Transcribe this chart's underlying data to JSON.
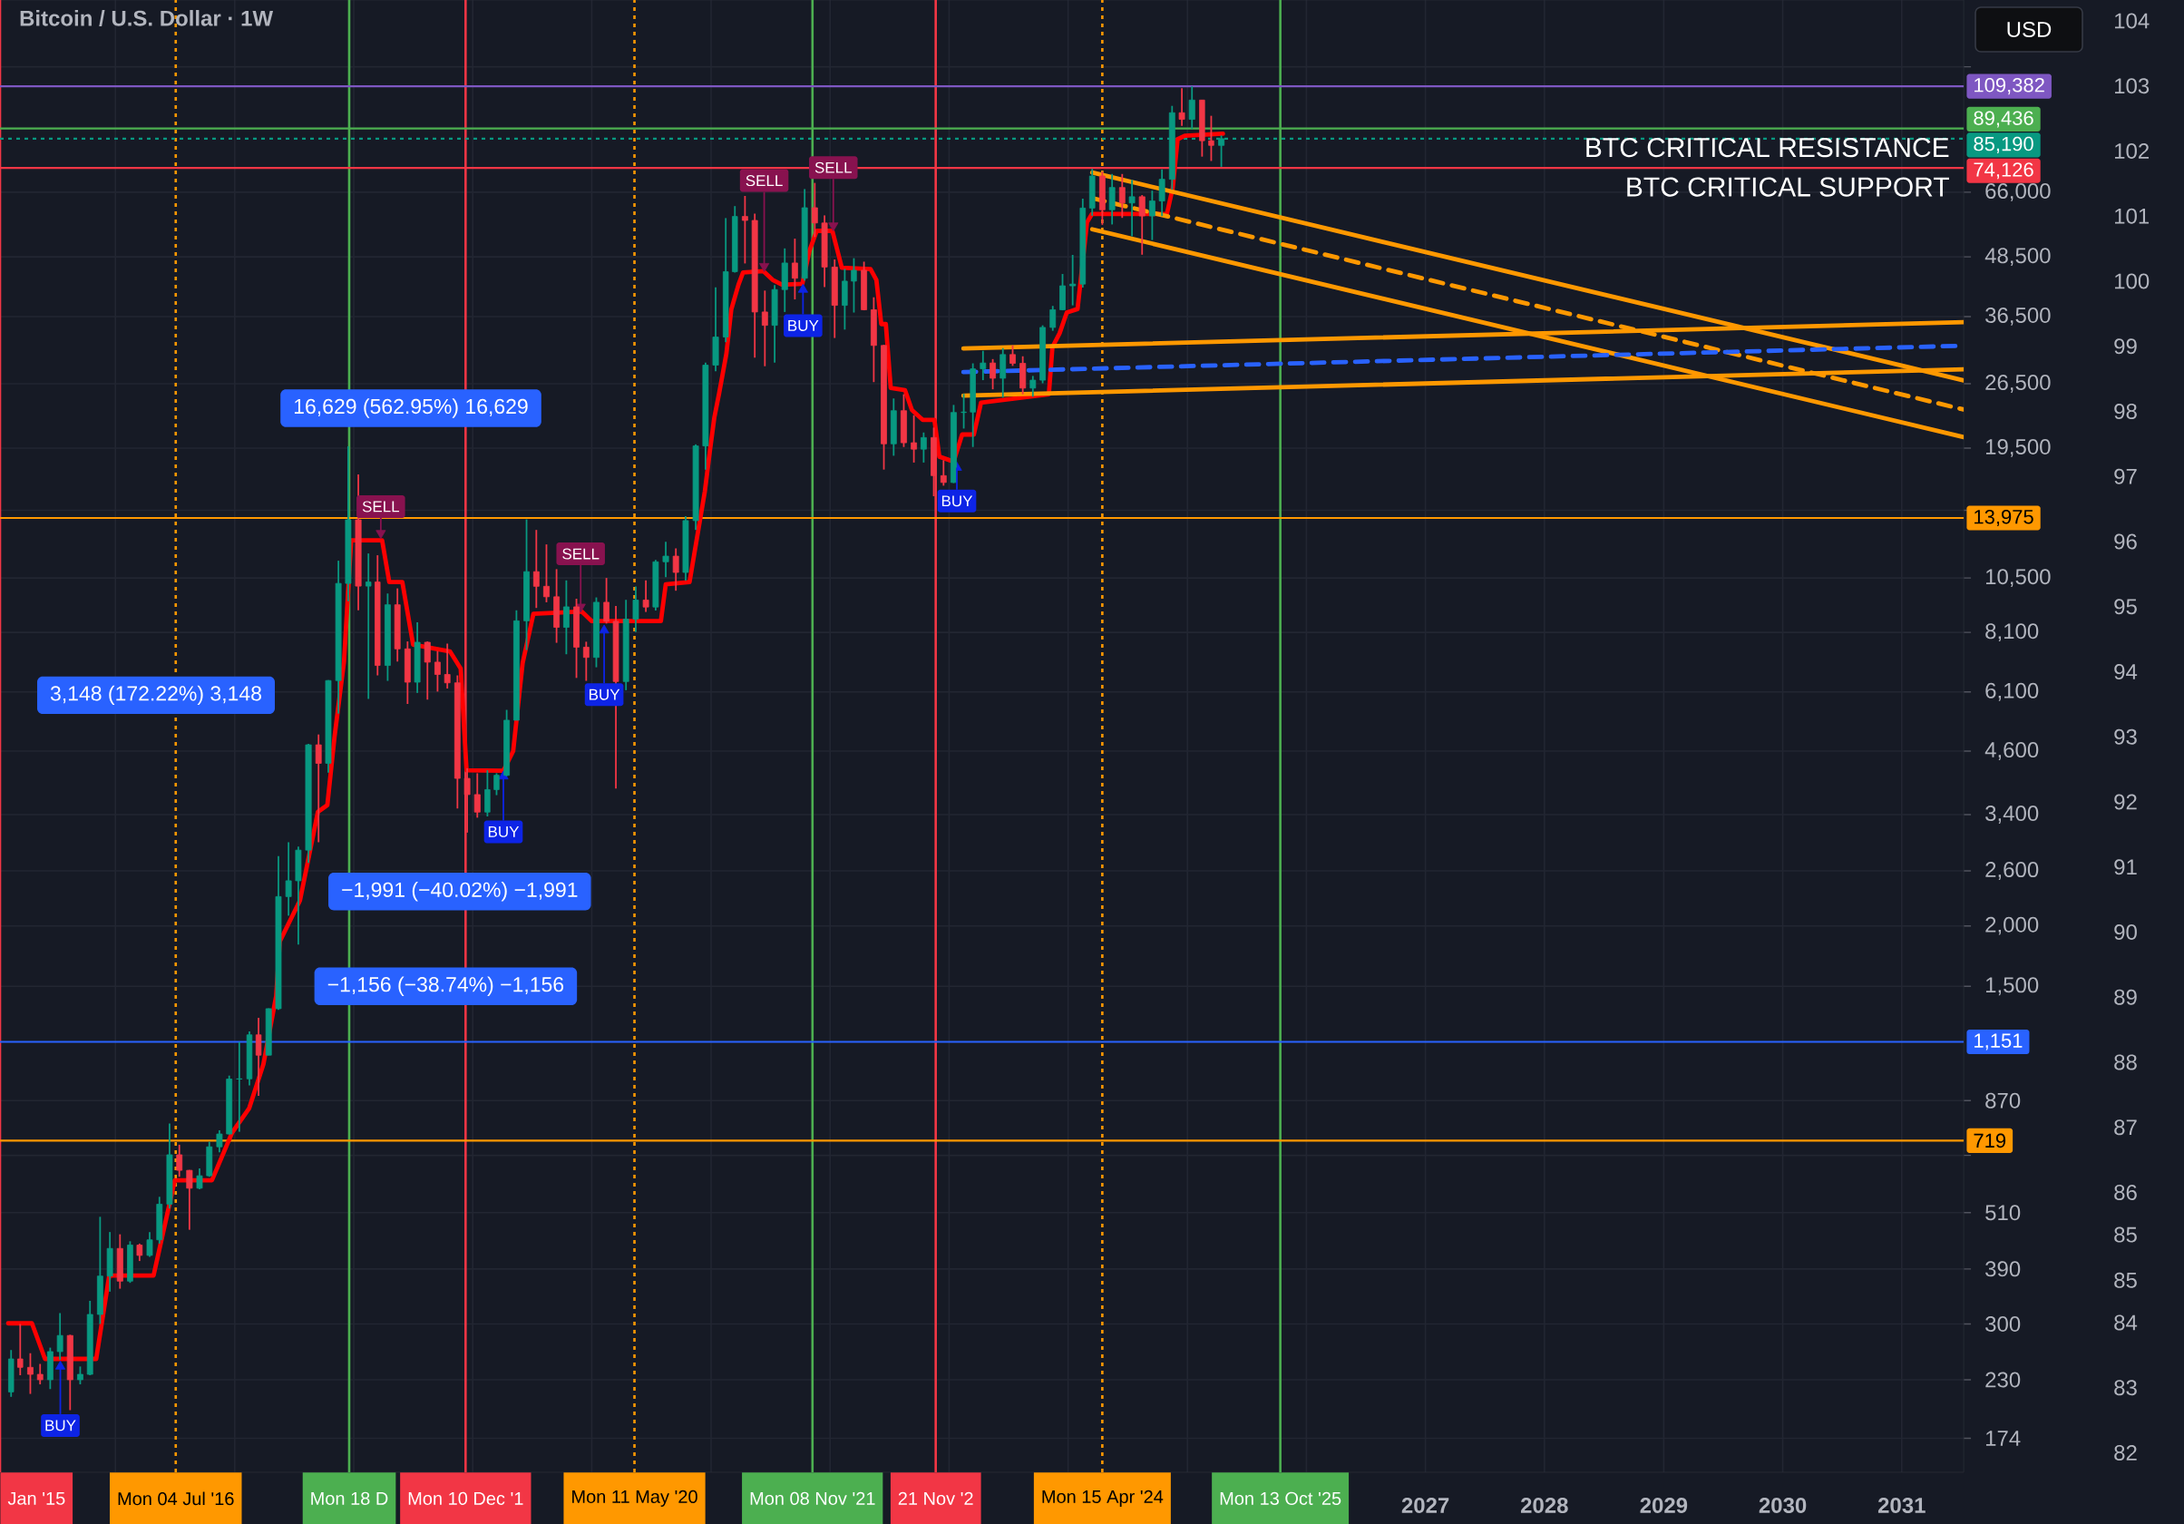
{
  "chart_data": {
    "type": "candlestick",
    "title": "Bitcoin / U.S. Dollar · 1W",
    "ylabel": "USD",
    "x": [
      "2015-02-15",
      "2015-03-15",
      "2015-04-15",
      "2015-05-15",
      "2015-06-15",
      "2015-07-15",
      "2015-08-15",
      "2015-09-15",
      "2015-10-15",
      "2015-11-15",
      "2015-12-15",
      "2016-01-15",
      "2016-02-15",
      "2016-03-15",
      "2016-04-15",
      "2016-05-15",
      "2016-06-15",
      "2016-07-15",
      "2016-08-15",
      "2016-09-15",
      "2016-10-15",
      "2016-11-15",
      "2016-12-15",
      "2017-01-15",
      "2017-02-15",
      "2017-03-15",
      "2017-04-15",
      "2017-05-15",
      "2017-06-15",
      "2017-07-15",
      "2017-08-15",
      "2017-09-15",
      "2017-10-15",
      "2017-11-15",
      "2017-12-15",
      "2018-01-15",
      "2018-02-15",
      "2018-03-15",
      "2018-04-15",
      "2018-05-15",
      "2018-06-15",
      "2018-07-15",
      "2018-08-15",
      "2018-09-15",
      "2018-10-15",
      "2018-11-15",
      "2018-12-15",
      "2019-01-15",
      "2019-02-15",
      "2019-03-15",
      "2019-04-15",
      "2019-05-15",
      "2019-06-15",
      "2019-07-15",
      "2019-08-15",
      "2019-09-15",
      "2019-10-15",
      "2019-11-15",
      "2019-12-15",
      "2020-01-15",
      "2020-02-15",
      "2020-03-15",
      "2020-04-15",
      "2020-05-15",
      "2020-06-15",
      "2020-07-15",
      "2020-08-15",
      "2020-09-15",
      "2020-10-15",
      "2020-11-15",
      "2020-12-15",
      "2021-01-15",
      "2021-02-15",
      "2021-03-15",
      "2021-04-15",
      "2021-05-15",
      "2021-06-15",
      "2021-07-15",
      "2021-08-15",
      "2021-09-15",
      "2021-10-15",
      "2021-11-15",
      "2021-12-15",
      "2022-01-15",
      "2022-02-15",
      "2022-03-15",
      "2022-04-15",
      "2022-05-15",
      "2022-06-15",
      "2022-07-15",
      "2022-08-15",
      "2022-09-15",
      "2022-10-15",
      "2022-11-15",
      "2022-12-15",
      "2023-01-15",
      "2023-02-15",
      "2023-03-15",
      "2023-04-15",
      "2023-05-15",
      "2023-06-15",
      "2023-07-15",
      "2023-08-15",
      "2023-09-15",
      "2023-10-15",
      "2023-11-15",
      "2023-12-15",
      "2024-01-15",
      "2024-02-15",
      "2024-03-15",
      "2024-04-15",
      "2024-05-15",
      "2024-06-15",
      "2024-07-15",
      "2024-08-15",
      "2024-09-15",
      "2024-10-15",
      "2024-11-15",
      "2024-12-15",
      "2025-01-15",
      "2025-02-15",
      "2025-03-15",
      "2025-04-15"
    ],
    "ohlc": [
      [
        217,
        265,
        212,
        254
      ],
      [
        254,
        300,
        235,
        244
      ],
      [
        244,
        261,
        215,
        236
      ],
      [
        236,
        248,
        225,
        230
      ],
      [
        230,
        268,
        220,
        263
      ],
      [
        263,
        316,
        253,
        284
      ],
      [
        284,
        285,
        199,
        230
      ],
      [
        230,
        245,
        225,
        236
      ],
      [
        236,
        335,
        235,
        314
      ],
      [
        314,
        500,
        300,
        377
      ],
      [
        377,
        465,
        350,
        430
      ],
      [
        430,
        460,
        355,
        368
      ],
      [
        368,
        445,
        365,
        437
      ],
      [
        437,
        440,
        405,
        416
      ],
      [
        416,
        465,
        413,
        448
      ],
      [
        448,
        550,
        440,
        531
      ],
      [
        531,
        780,
        520,
        672
      ],
      [
        672,
        705,
        605,
        624
      ],
      [
        624,
        625,
        470,
        573
      ],
      [
        573,
        630,
        570,
        608
      ],
      [
        608,
        715,
        605,
        698
      ],
      [
        698,
        755,
        680,
        742
      ],
      [
        742,
        980,
        740,
        964
      ],
      [
        964,
        1150,
        750,
        965
      ],
      [
        965,
        1210,
        935,
        1190
      ],
      [
        1190,
        1290,
        890,
        1080
      ],
      [
        1080,
        1350,
        1080,
        1348
      ],
      [
        1348,
        2790,
        1340,
        2300
      ],
      [
        2300,
        2980,
        2100,
        2480
      ],
      [
        2480,
        2920,
        1830,
        2870
      ],
      [
        2870,
        4760,
        2700,
        4740
      ],
      [
        4740,
        4980,
        2980,
        4340
      ],
      [
        4340,
        6450,
        4150,
        6440
      ],
      [
        6440,
        11400,
        5500,
        10230
      ],
      [
        10230,
        19666,
        9400,
        13850
      ],
      [
        13850,
        17200,
        9000,
        10100
      ],
      [
        10100,
        11800,
        5900,
        10300
      ],
      [
        10300,
        11700,
        6600,
        6920
      ],
      [
        6920,
        9750,
        6430,
        9240
      ],
      [
        9240,
        9990,
        7050,
        7490
      ],
      [
        7490,
        7760,
        5760,
        6390
      ],
      [
        6390,
        8500,
        6070,
        7730
      ],
      [
        7730,
        7760,
        5880,
        7030
      ],
      [
        7030,
        7410,
        6110,
        6630
      ],
      [
        6630,
        7680,
        6200,
        6370
      ],
      [
        6370,
        6600,
        3500,
        4040
      ],
      [
        4040,
        4240,
        3120,
        3740
      ],
      [
        3740,
        4140,
        3350,
        3440
      ],
      [
        3440,
        4200,
        3370,
        3830
      ],
      [
        3830,
        4140,
        3730,
        4100
      ],
      [
        4100,
        5600,
        4080,
        5330
      ],
      [
        5330,
        9000,
        5330,
        8560
      ],
      [
        8560,
        13880,
        7450,
        10820
      ],
      [
        10820,
        13200,
        9100,
        10090
      ],
      [
        10090,
        12320,
        9350,
        9600
      ],
      [
        9600,
        10950,
        7710,
        8300
      ],
      [
        8300,
        10380,
        7300,
        9150
      ],
      [
        9150,
        9510,
        6520,
        7550
      ],
      [
        7550,
        7750,
        6430,
        7190
      ],
      [
        7190,
        9570,
        6860,
        9350
      ],
      [
        9350,
        10500,
        8450,
        8540
      ],
      [
        8540,
        9190,
        3850,
        6410
      ],
      [
        6410,
        9460,
        6150,
        8630
      ],
      [
        8630,
        10080,
        8110,
        9450
      ],
      [
        9450,
        10380,
        8930,
        9140
      ],
      [
        9140,
        11440,
        8990,
        11340
      ],
      [
        11340,
        12470,
        10540,
        11650
      ],
      [
        11650,
        12090,
        9880,
        10780
      ],
      [
        10780,
        14100,
        10370,
        13800
      ],
      [
        13800,
        19850,
        13200,
        19700
      ],
      [
        19700,
        29300,
        17600,
        28950
      ],
      [
        28950,
        41950,
        28130,
        33100
      ],
      [
        33100,
        58350,
        32300,
        45200
      ],
      [
        45200,
        61780,
        45000,
        58800
      ],
      [
        58800,
        64850,
        47000,
        57700
      ],
      [
        57700,
        59600,
        30000,
        37300
      ],
      [
        37300,
        41300,
        28800,
        35000
      ],
      [
        35000,
        42400,
        29300,
        41500
      ],
      [
        41500,
        50500,
        37300,
        47100
      ],
      [
        47100,
        52900,
        39600,
        43800
      ],
      [
        43800,
        67000,
        43300,
        61300
      ],
      [
        61300,
        69000,
        53300,
        57000
      ],
      [
        57000,
        59100,
        42000,
        46200
      ],
      [
        46200,
        47900,
        32950,
        38500
      ],
      [
        38500,
        45800,
        34300,
        43200
      ],
      [
        43200,
        48200,
        37200,
        45500
      ],
      [
        45500,
        47400,
        37600,
        37700
      ],
      [
        37700,
        40000,
        26700,
        31800
      ],
      [
        31800,
        31900,
        17600,
        19900
      ],
      [
        19900,
        24700,
        18800,
        23300
      ],
      [
        23300,
        25200,
        19600,
        20000
      ],
      [
        20000,
        22800,
        18200,
        19400
      ],
      [
        19400,
        21000,
        18200,
        20500
      ],
      [
        20500,
        21500,
        15500,
        17100
      ],
      [
        17100,
        18400,
        16300,
        16550
      ],
      [
        16550,
        23950,
        16500,
        23100
      ],
      [
        23100,
        25250,
        21400,
        23150
      ],
      [
        23150,
        29200,
        19600,
        28450
      ],
      [
        28450,
        31000,
        26950,
        29250
      ],
      [
        29250,
        29800,
        25800,
        27200
      ],
      [
        27200,
        31400,
        24800,
        30450
      ],
      [
        30450,
        31800,
        28850,
        29200
      ],
      [
        29200,
        30200,
        25200,
        25950
      ],
      [
        25950,
        27500,
        24900,
        26950
      ],
      [
        26950,
        35000,
        26550,
        34650
      ],
      [
        34650,
        38400,
        34100,
        37700
      ],
      [
        37700,
        44700,
        37600,
        42250
      ],
      [
        42250,
        48950,
        38500,
        42600
      ],
      [
        42600,
        64000,
        41900,
        61200
      ],
      [
        61200,
        73800,
        59000,
        71300
      ],
      [
        71300,
        72800,
        56500,
        60700
      ],
      [
        60700,
        72000,
        56600,
        67500
      ],
      [
        67500,
        72000,
        58400,
        62700
      ],
      [
        62700,
        70000,
        53500,
        64600
      ],
      [
        64600,
        65100,
        49000,
        58950
      ],
      [
        58950,
        66500,
        52550,
        63300
      ],
      [
        63300,
        73600,
        58900,
        70200
      ],
      [
        70200,
        99600,
        66800,
        96400
      ],
      [
        96400,
        108300,
        90500,
        93400
      ],
      [
        93400,
        109382,
        89200,
        102400
      ],
      [
        102400,
        102500,
        78200,
        84350
      ],
      [
        84350,
        95000,
        76600,
        82500
      ],
      [
        82500,
        86500,
        74500,
        85190
      ]
    ],
    "colors": [
      "#089981",
      "#f23645",
      "#f23645",
      "#f23645",
      "#089981",
      "#089981",
      "#f23645",
      "#089981",
      "#089981",
      "#089981",
      "#089981",
      "#f23645",
      "#089981",
      "#f23645",
      "#089981",
      "#089981",
      "#089981",
      "#f23645",
      "#f23645",
      "#089981",
      "#089981",
      "#089981",
      "#089981",
      "#089981",
      "#089981",
      "#f23645",
      "#089981",
      "#089981",
      "#089981",
      "#089981",
      "#089981",
      "#f23645",
      "#089981",
      "#089981",
      "#089981",
      "#f23645",
      "#089981",
      "#f23645",
      "#089981",
      "#f23645",
      "#f23645",
      "#089981",
      "#f23645",
      "#f23645",
      "#f23645",
      "#f23645",
      "#f23645",
      "#f23645",
      "#089981",
      "#089981",
      "#089981",
      "#089981",
      "#089981",
      "#f23645",
      "#f23645",
      "#f23645",
      "#089981",
      "#f23645",
      "#f23645",
      "#089981",
      "#f23645",
      "#f23645",
      "#089981",
      "#089981",
      "#f23645",
      "#089981",
      "#089981",
      "#f23645",
      "#089981",
      "#089981",
      "#089981",
      "#089981",
      "#089981",
      "#089981",
      "#f23645",
      "#f23645",
      "#f23645",
      "#089981",
      "#089981",
      "#f23645",
      "#089981",
      "#f23645",
      "#f23645",
      "#f23645",
      "#089981",
      "#089981",
      "#f23645",
      "#f23645",
      "#f23645",
      "#089981",
      "#f23645",
      "#f23645",
      "#089981",
      "#f23645",
      "#f23645",
      "#089981",
      "#089981",
      "#089981",
      "#089981",
      "#f23645",
      "#089981",
      "#f23645",
      "#f23645",
      "#089981",
      "#089981",
      "#089981",
      "#089981",
      "#089981",
      "#089981",
      "#089981",
      "#f23645",
      "#089981",
      "#f23645",
      "#089981",
      "#f23645",
      "#089981",
      "#089981",
      "#089981",
      "#f23645",
      "#089981",
      "#f23645",
      "#f23645",
      "#089981"
    ],
    "series": [
      {
        "type": "line",
        "color": "#ff0000",
        "x": [
          "2015-02-06",
          "2015-04-20",
          "2015-05-30",
          "2015-11-03",
          "2015-12-13",
          "2016-04-27",
          "2016-07-01",
          "2016-10-23",
          "2016-12-24",
          "2017-02-14",
          "2017-03-30",
          "2017-05-08",
          "2017-05-19",
          "2017-07-20",
          "2017-09-13",
          "2017-10-12",
          "2017-11-03",
          "2017-12-02",
          "2017-12-24",
          "2018-03-29",
          "2018-04-20",
          "2018-05-30",
          "2018-07-02",
          "2018-10-23",
          "2018-11-25",
          "2018-12-13",
          "2019-04-05",
          "2019-05-05",
          "2019-06-03",
          "2019-07-06",
          "2019-12-01",
          "2020-01-01",
          "2020-07-31",
          "2020-08-15",
          "2020-10-27",
          "2020-11-10",
          "2020-12-13",
          "2020-12-28",
          "2021-01-11",
          "2021-01-26",
          "2021-02-17",
          "2021-03-04",
          "2021-03-26",
          "2021-04-09",
          "2021-06-10",
          "2021-07-09",
          "2021-08-07",
          "2021-10-08",
          "2021-10-30",
          "2021-11-21",
          "2022-01-08",
          "2022-02-06",
          "2022-05-05",
          "2022-05-23",
          "2022-06-07",
          "2022-06-21",
          "2022-07-06",
          "2022-08-19",
          "2022-09-09",
          "2022-10-12",
          "2022-11-17",
          "2022-12-02",
          "2023-01-15",
          "2023-02-10",
          "2023-03-18",
          "2023-04-09",
          "2023-11-03",
          "2023-11-14",
          "2023-12-06",
          "2023-12-28",
          "2024-01-30",
          "2024-02-28",
          "2024-03-14",
          "2024-10-30",
          "2024-11-17",
          "2024-12-02",
          "2024-12-24",
          "2025-04-20"
        ],
        "values": [
          301,
          301,
          254,
          254,
          378,
          378,
          595,
          595,
          747,
          838,
          1035,
          1432,
          1857,
          2257,
          3444,
          3558,
          4926,
          7041,
          12560,
          12560,
          10300,
          10300,
          7640,
          7400,
          6820,
          4200,
          4190,
          4600,
          7000,
          8850,
          8950,
          8550,
          8550,
          10190,
          10300,
          11720,
          15890,
          19160,
          22570,
          25370,
          30590,
          37760,
          42460,
          45010,
          45330,
          43450,
          42460,
          42660,
          50000,
          54900,
          54900,
          46070,
          45760,
          43450,
          35210,
          35210,
          25970,
          25680,
          23380,
          22310,
          22310,
          18720,
          18280,
          20800,
          20800,
          24210,
          25200,
          31550,
          33700,
          37210,
          37830,
          57170,
          59480,
          59480,
          67440,
          84960,
          86380,
          87250
        ]
      },
      {
        "type": "line",
        "color": "#ff9800",
        "x": [
          "2024-03-15",
          "2031-07-10"
        ],
        "values": [
          72500,
          26920
        ]
      },
      {
        "type": "line",
        "color": "#ff9800",
        "line_style": "dashed",
        "x": [
          "2024-03-15",
          "2031-07-10"
        ],
        "values": [
          64170,
          23430
        ]
      },
      {
        "type": "line",
        "color": "#ff9800",
        "x": [
          "2024-03-15",
          "2031-07-10"
        ],
        "values": [
          55320,
          20540
        ]
      },
      {
        "type": "line",
        "color": "#ff9800",
        "x": [
          "2023-02-14",
          "2031-07-10"
        ],
        "values": [
          31340,
          35530
        ]
      },
      {
        "type": "line",
        "color": "#2962ff",
        "line_style": "dashed",
        "x": [
          "2023-02-14",
          "2031-07-10"
        ],
        "values": [
          28010,
          31760
        ]
      },
      {
        "type": "line",
        "color": "#ff9800",
        "x": [
          "2023-02-14",
          "2031-07-10"
        ],
        "values": [
          25030,
          28380
        ]
      },
      {
        "type": "scatter",
        "name": "BUY",
        "color": "#0d24e6",
        "marker": "triangle",
        "x": [
          "2015-07-16",
          "2019-04-05",
          "2020-02-08",
          "2021-10-10",
          "2023-01-25"
        ],
        "values": [
          245,
          4080,
          8180,
          41500,
          17770
        ]
      },
      {
        "type": "scatter",
        "name": "SELL",
        "color": "#88124f",
        "marker": "triangle",
        "x": [
          "2018-03-25",
          "2019-11-28",
          "2021-06-13",
          "2022-01-11"
        ],
        "values": [
          13000,
          9150,
          46400,
          56300
        ]
      }
    ],
    "xlim": [
      "2015-01-12",
      "2031-07-10"
    ],
    "xticks": [
      {
        "value": "2016",
        "label": null
      },
      {
        "value": "2017",
        "label": null
      },
      {
        "value": "2018",
        "label": null
      },
      {
        "value": "2019",
        "label": null
      },
      {
        "value": "2020",
        "label": null
      },
      {
        "value": "2021",
        "label": null
      },
      {
        "value": "2022",
        "label": null
      },
      {
        "value": "2023",
        "label": null
      },
      {
        "value": "2024",
        "label": null
      },
      {
        "value": "2025",
        "label": null
      },
      {
        "value": "2026",
        "label": null
      },
      "2027",
      "2028",
      "2029",
      "2030",
      "2031"
    ],
    "ylim": [
      148,
      165000
    ],
    "log": "y",
    "yticks": [
      174,
      230,
      300,
      390,
      510,
      {
        "value": 670,
        "label": null
      },
      870,
      {
        "value": 1500,
        "label": "1,500"
      },
      {
        "value": 2000,
        "label": "2,000"
      },
      {
        "value": 2600,
        "label": "2,600"
      },
      {
        "value": 3400,
        "label": "3,400"
      },
      {
        "value": 4600,
        "label": "4,600"
      },
      {
        "value": 6100,
        "label": "6,100"
      },
      {
        "value": 8100,
        "label": "8,100"
      },
      {
        "value": 10500,
        "label": "10,500"
      },
      {
        "value": 14500,
        "label": null
      },
      {
        "value": 19500,
        "label": "19,500"
      },
      {
        "value": 26500,
        "label": "26,500"
      },
      {
        "value": 36500,
        "label": "36,500"
      },
      {
        "value": 48500,
        "label": "48,500"
      },
      {
        "value": 66000,
        "label": "66,000"
      },
      {
        "value": 120000,
        "label": null
      }
    ],
    "y2lim": [
      81.7,
      104.32
    ],
    "y2ticks": [
      104,
      103,
      102,
      101,
      100,
      99,
      98,
      97,
      96,
      95,
      94,
      93,
      92,
      91,
      90,
      89,
      88,
      87,
      86,
      {
        "value": 85.35,
        "label": "85"
      },
      {
        "value": 84.65,
        "label": "85"
      },
      84,
      83,
      82
    ],
    "grid": true,
    "ref_lines": [
      {
        "axis": "x",
        "value": "2015-01-12",
        "label": "Jan '15",
        "color": "#f23645"
      },
      {
        "axis": "x",
        "value": "2016-07-04",
        "label": "Mon 04 Jul '16",
        "color": "#ff9800",
        "line_style": "dotted"
      },
      {
        "axis": "x",
        "value": "2017-12-18",
        "label": "Mon 18 D",
        "color": "#4caf50"
      },
      {
        "axis": "x",
        "value": "2018-12-10",
        "label": "Mon 10 Dec '1",
        "color": "#f23645"
      },
      {
        "axis": "x",
        "value": "2020-05-11",
        "label": "Mon 11 May '20",
        "color": "#ff9800",
        "line_style": "dotted"
      },
      {
        "axis": "x",
        "value": "2021-11-08",
        "label": "Mon 08 Nov '21",
        "color": "#4caf50"
      },
      {
        "axis": "x",
        "value": "2022-11-21",
        "label": "21 Nov '2",
        "color": "#f23645"
      },
      {
        "axis": "x",
        "value": "2024-04-15",
        "label": "Mon 15 Apr '24",
        "color": "#ff9800",
        "line_style": "dotted"
      },
      {
        "axis": "x",
        "value": "2025-10-13",
        "label": "Mon 13 Oct '25",
        "color": "#4caf50"
      },
      {
        "axis": "y",
        "value": 109382,
        "label": "109,382",
        "color": "#7e57c2"
      },
      {
        "axis": "y",
        "value": 89436,
        "label": "89,436",
        "color": "#4caf50"
      },
      {
        "axis": "y",
        "value": 85190,
        "label": "85,190",
        "color": "#089981",
        "line_style": "dotted"
      },
      {
        "axis": "y",
        "value": 74126,
        "label": "74,126",
        "color": "#f23645"
      },
      {
        "axis": "y",
        "value": 13975,
        "label": "13,975",
        "color": "#ff9800"
      },
      {
        "axis": "y",
        "value": 1151,
        "label": "1,151",
        "color": "#2962ff"
      },
      {
        "axis": "y",
        "value": 719,
        "label": "719",
        "color": "#ff9800"
      }
    ],
    "annotations": [
      "16,629 (562.95%) 16,629",
      "3,148 (172.22%) 3,148",
      "−1,991 (−40.02%) −1,991",
      "−1,156 (−38.74%) −1,156",
      {
        "text": "BTC CRITICAL RESISTANCE",
        "x": "2031-07-10",
        "y": 89436
      },
      {
        "text": "BTC CRITICAL SUPPORT",
        "x": "2031-07-10",
        "y": 74126
      }
    ]
  }
}
